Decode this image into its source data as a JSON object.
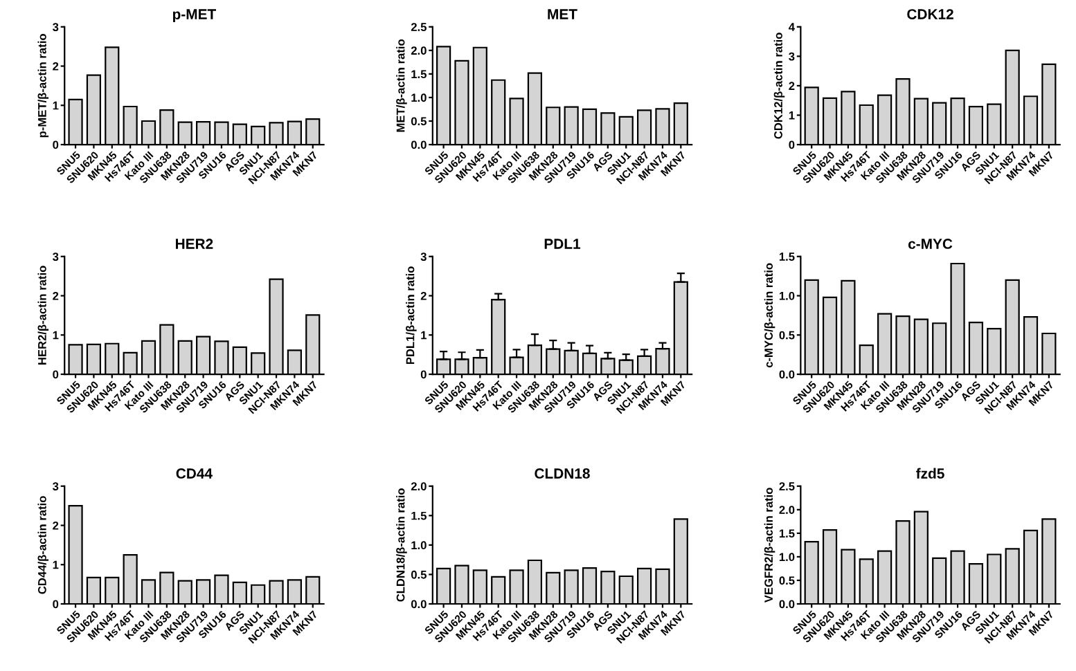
{
  "chart_data": [
    {
      "type": "bar",
      "title": "p-MET",
      "ylabel": "p-MET/β-actin ratio",
      "categories": [
        "SNU5",
        "SNU620",
        "MKN45",
        "Hs746T",
        "Kato III",
        "SNU638",
        "MKN28",
        "SNU719",
        "SNU16",
        "AGS",
        "SNU1",
        "NCI-N87",
        "MKN74",
        "MKN7"
      ],
      "values": [
        1.15,
        1.77,
        2.48,
        0.97,
        0.6,
        0.88,
        0.57,
        0.58,
        0.57,
        0.52,
        0.46,
        0.56,
        0.59,
        0.65
      ],
      "color": "#d4d4d4",
      "ylim": [
        0,
        3
      ],
      "yticks": [
        0,
        1,
        2,
        3
      ],
      "grid": false
    },
    {
      "type": "bar",
      "title": "MET",
      "ylabel": "MET/β-actin ratio",
      "categories": [
        "SNU5",
        "SNU620",
        "MKN45",
        "Hs746T",
        "Kato III",
        "SNU638",
        "MKN28",
        "SNU719",
        "SNU16",
        "AGS",
        "SNU1",
        "NCI-N87",
        "MKN74",
        "MKN7"
      ],
      "values": [
        2.08,
        1.78,
        2.06,
        1.37,
        0.98,
        1.52,
        0.79,
        0.8,
        0.75,
        0.67,
        0.59,
        0.73,
        0.76,
        0.88
      ],
      "color": "#d4d4d4",
      "ylim": [
        0,
        2.5
      ],
      "yticks": [
        {
          "value": 0,
          "label": "0.0"
        },
        0.5,
        {
          "value": 1,
          "label": "1.0"
        },
        1.5,
        {
          "value": 2,
          "label": "2.0"
        },
        2.5
      ],
      "grid": false
    },
    {
      "type": "bar",
      "title": "CDK12",
      "ylabel": "CDK12/β-actin ratio",
      "categories": [
        "SNU5",
        "SNU620",
        "MKN45",
        "Hs746T",
        "Kato III",
        "SNU638",
        "MKN28",
        "SNU719",
        "SNU16",
        "AGS",
        "SNU1",
        "NCI-N87",
        "MKN74",
        "MKN7"
      ],
      "values": [
        1.94,
        1.58,
        1.8,
        1.34,
        1.68,
        2.23,
        1.56,
        1.42,
        1.57,
        1.29,
        1.37,
        3.2,
        1.64,
        2.73
      ],
      "color": "#d4d4d4",
      "ylim": [
        0,
        4
      ],
      "yticks": [
        0,
        1,
        2,
        3,
        4
      ],
      "grid": false
    },
    {
      "type": "bar",
      "title": "HER2",
      "ylabel": "HER2/β-actin ratio",
      "categories": [
        "SNU5",
        "SNU620",
        "MKN45",
        "Hs746T",
        "Kato III",
        "SNU638",
        "MKN28",
        "SNU719",
        "SNU16",
        "AGS",
        "SNU1",
        "NCI-N87",
        "MKN74",
        "MKN7"
      ],
      "values": [
        0.75,
        0.76,
        0.78,
        0.55,
        0.85,
        1.26,
        0.85,
        0.96,
        0.84,
        0.69,
        0.54,
        2.42,
        0.61,
        1.51
      ],
      "color": "#d4d4d4",
      "ylim": [
        0,
        3
      ],
      "yticks": [
        0,
        1,
        2,
        3
      ],
      "grid": false
    },
    {
      "type": "bar",
      "title": "PDL1",
      "ylabel": "PDL1/β-actin ratio",
      "categories": [
        "SNU5",
        "SNU620",
        "MKN45",
        "Hs746T",
        "Kato III",
        "SNU638",
        "MKN28",
        "SNU719",
        "SNU16",
        "AGS",
        "SNU1",
        "NCI-N87",
        "MKN74",
        "MKN7"
      ],
      "values": [
        0.38,
        0.38,
        0.42,
        1.9,
        0.43,
        0.74,
        0.64,
        0.6,
        0.53,
        0.4,
        0.36,
        0.46,
        0.65,
        2.35
      ],
      "errors": [
        0.2,
        0.18,
        0.2,
        0.15,
        0.2,
        0.28,
        0.22,
        0.2,
        0.2,
        0.15,
        0.15,
        0.17,
        0.15,
        0.22
      ],
      "color": "#d4d4d4",
      "ylim": [
        0,
        3
      ],
      "yticks": [
        0,
        1,
        2,
        3
      ],
      "grid": false
    },
    {
      "type": "bar",
      "title": "c-MYC",
      "ylabel": "c-MYC/β-actin ratio",
      "categories": [
        "SNU5",
        "SNU620",
        "MKN45",
        "Hs746T",
        "Kato III",
        "SNU638",
        "MKN28",
        "SNU719",
        "SNU16",
        "AGS",
        "SNU1",
        "NCI-N87",
        "MKN74",
        "MKN7"
      ],
      "values": [
        1.2,
        0.98,
        1.19,
        0.37,
        0.77,
        0.74,
        0.7,
        0.65,
        1.41,
        0.66,
        0.58,
        1.2,
        0.73,
        0.52
      ],
      "color": "#d4d4d4",
      "ylim": [
        0,
        1.5
      ],
      "yticks": [
        {
          "value": 0,
          "label": "0.0"
        },
        0.5,
        {
          "value": 1,
          "label": "1.0"
        },
        1.5
      ],
      "grid": false
    },
    {
      "type": "bar",
      "title": "CD44",
      "ylabel": "CD44/β-actin ratio",
      "categories": [
        "SNU5",
        "SNU620",
        "MKN45",
        "Hs746T",
        "Kato III",
        "SNU638",
        "MKN28",
        "SNU719",
        "SNU16",
        "AGS",
        "SNU1",
        "NCI-N87",
        "MKN74",
        "MKN7"
      ],
      "values": [
        2.5,
        0.67,
        0.67,
        1.25,
        0.61,
        0.8,
        0.59,
        0.61,
        0.73,
        0.55,
        0.48,
        0.59,
        0.61,
        0.69
      ],
      "color": "#d4d4d4",
      "ylim": [
        0,
        3
      ],
      "yticks": [
        0,
        1,
        2,
        3
      ],
      "grid": false
    },
    {
      "type": "bar",
      "title": "CLDN18",
      "ylabel": "CLDN18/β-actin ratio",
      "categories": [
        "SNU5",
        "SNU620",
        "MKN45",
        "Hs746T",
        "Kato III",
        "SNU638",
        "MKN28",
        "SNU719",
        "SNU16",
        "AGS",
        "SNU1",
        "NCI-N87",
        "MKN74",
        "MKN7"
      ],
      "values": [
        0.6,
        0.65,
        0.57,
        0.46,
        0.57,
        0.74,
        0.53,
        0.57,
        0.61,
        0.55,
        0.47,
        0.6,
        0.59,
        1.44
      ],
      "color": "#d4d4d4",
      "ylim": [
        0,
        2
      ],
      "yticks": [
        {
          "value": 0,
          "label": "0.0"
        },
        0.5,
        {
          "value": 1,
          "label": "1.0"
        },
        1.5,
        {
          "value": 2,
          "label": "2.0"
        }
      ],
      "grid": false
    },
    {
      "type": "bar",
      "title": "fzd5",
      "ylabel": "VEGFR2/β-actin ratio",
      "categories": [
        "SNU5",
        "SNU620",
        "MKN45",
        "Hs746T",
        "Kato III",
        "SNU638",
        "MKN28",
        "SNU719",
        "SNU16",
        "AGS",
        "SNU1",
        "NCI-N87",
        "MKN74",
        "MKN7"
      ],
      "values": [
        1.32,
        1.57,
        1.15,
        0.95,
        1.12,
        1.76,
        1.96,
        0.97,
        1.12,
        0.85,
        1.05,
        1.17,
        1.56,
        1.8
      ],
      "color": "#d4d4d4",
      "ylim": [
        0,
        2.5
      ],
      "yticks": [
        {
          "value": 0,
          "label": "0.0"
        },
        0.5,
        {
          "value": 1,
          "label": "1.0"
        },
        1.5,
        {
          "value": 2,
          "label": "2.0"
        },
        2.5
      ],
      "grid": false
    }
  ]
}
